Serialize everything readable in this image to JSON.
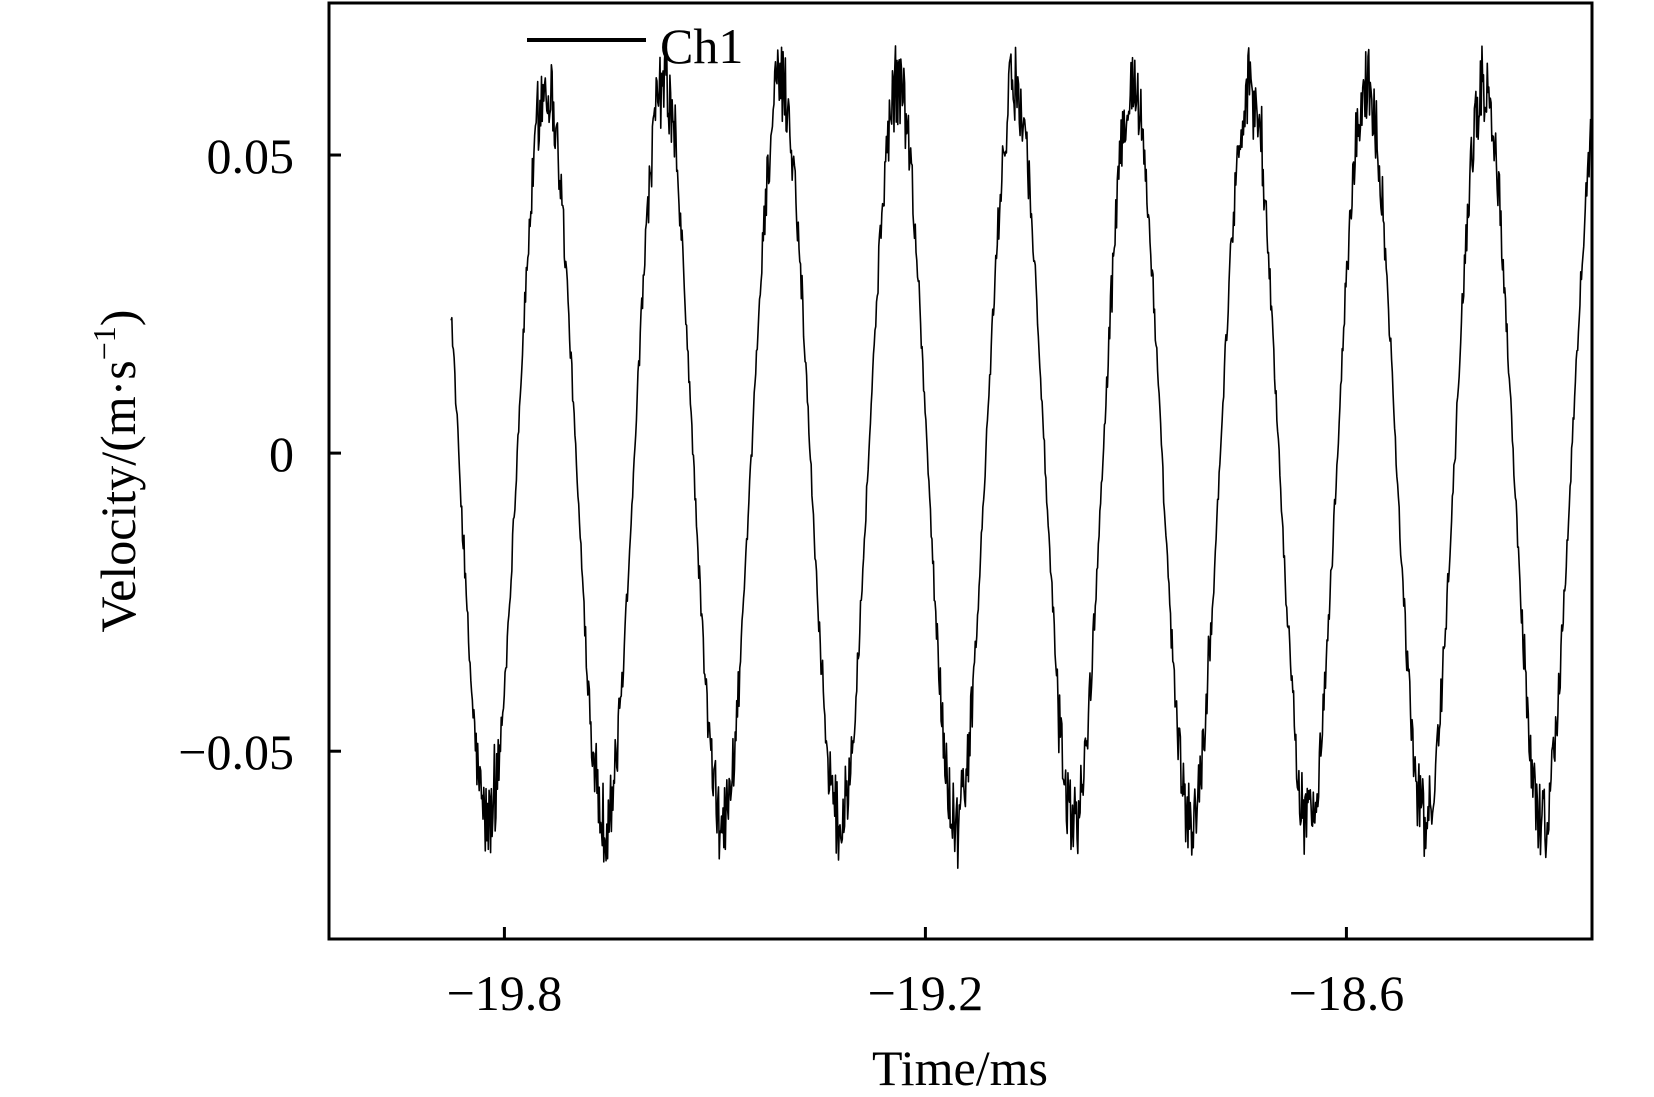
{
  "chart_data": {
    "type": "line",
    "title": "",
    "xlabel": "Time/ms",
    "ylabel_base": "Velocity/(m·s",
    "ylabel_sup": "−1",
    "ylabel_tail": ")",
    "xlim": [
      -20.05,
      -18.25
    ],
    "ylim": [
      -0.0815,
      0.0755
    ],
    "x_ticks": [
      {
        "value": -19.8,
        "label": "−19.8"
      },
      {
        "value": -19.2,
        "label": "−19.2"
      },
      {
        "value": -18.6,
        "label": "−18.6"
      }
    ],
    "y_ticks": [
      {
        "value": 0.05,
        "label": "0.05"
      },
      {
        "value": 0,
        "label": "0"
      },
      {
        "value": -0.05,
        "label": "−0.05"
      }
    ],
    "grid": false,
    "legend": {
      "position": "top-left",
      "entries": [
        "Ch1"
      ]
    },
    "series": [
      {
        "name": "Ch1",
        "color": "#000000",
        "signal_model": {
          "description": "noisy sinusoid",
          "amplitude": 0.062,
          "period_ms": 0.167,
          "peak_time_ms": -19.907,
          "noise_amplitude": 0.007,
          "x_start": -20.05,
          "x_end": -18.25
        }
      }
    ]
  }
}
